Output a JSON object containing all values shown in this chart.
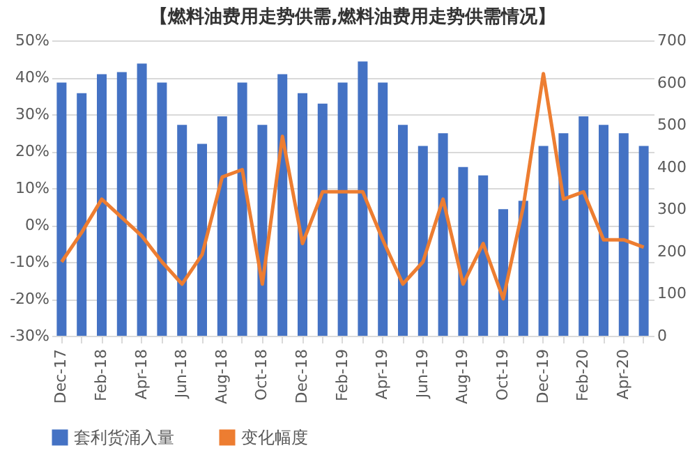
{
  "chart_data": {
    "type": "bar",
    "title": "【燃料油费用走势供需,燃料油费用走势供需情况】",
    "categories": [
      "Dec-17",
      null,
      "Feb-18",
      null,
      "Apr-18",
      null,
      "Jun-18",
      null,
      "Aug-18",
      null,
      "Oct-18",
      null,
      "Dec-18",
      null,
      "Feb-19",
      null,
      "Apr-19",
      null,
      "Jun-19",
      null,
      "Aug-19",
      null,
      "Oct-19",
      null,
      "Dec-19",
      null,
      "Feb-20",
      null,
      "Apr-20",
      null
    ],
    "series": [
      {
        "name": "套利货涌入量",
        "axis": "y2",
        "color": "#4472c4",
        "values": [
          600,
          575,
          620,
          625,
          645,
          600,
          500,
          455,
          520,
          600,
          500,
          620,
          575,
          550,
          600,
          650,
          600,
          500,
          450,
          480,
          400,
          380,
          300,
          320,
          450,
          480,
          520,
          500,
          480,
          450
        ]
      },
      {
        "name": "变化幅度",
        "type": "line",
        "axis": "y",
        "color": "#ed7d31",
        "values": [
          -10,
          -2,
          7,
          2,
          -3,
          -10,
          -16,
          -8,
          13,
          15,
          -16,
          24,
          -5,
          9,
          9,
          9,
          -4,
          -16,
          -10,
          7,
          -16,
          -5,
          -20,
          5,
          41,
          7,
          9,
          -4,
          -4,
          -6
        ]
      }
    ],
    "ylim": [
      -30,
      50
    ],
    "yticks": [
      {
        "value": -30,
        "label": "-30%"
      },
      {
        "value": -20,
        "label": "-20%"
      },
      {
        "value": -10,
        "label": "-10%"
      },
      {
        "value": 0,
        "label": "0%"
      },
      {
        "value": 10,
        "label": "10%"
      },
      {
        "value": 20,
        "label": "20%"
      },
      {
        "value": 30,
        "label": "30%"
      },
      {
        "value": 40,
        "label": "40%"
      },
      {
        "value": 50,
        "label": "50%"
      }
    ],
    "y2lim": [
      0,
      700
    ],
    "y2ticks": [
      0,
      100,
      200,
      300,
      400,
      500,
      600,
      700
    ],
    "grid": "y",
    "legend": "bottom",
    "line_style": "solid",
    "marker": "none"
  }
}
